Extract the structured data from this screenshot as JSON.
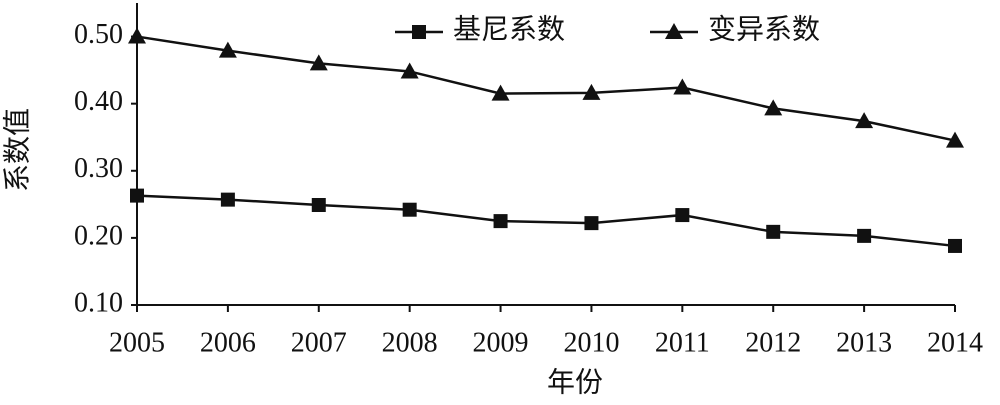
{
  "chart_data": {
    "type": "line",
    "x_label": "年份",
    "y_label": "系数值",
    "categories": [
      "2005",
      "2006",
      "2007",
      "2008",
      "2009",
      "2010",
      "2011",
      "2012",
      "2013",
      "2014"
    ],
    "series": [
      {
        "name": "基尼系数",
        "color": "#111111",
        "marker": "square",
        "values": [
          0.263,
          0.257,
          0.249,
          0.242,
          0.225,
          0.222,
          0.234,
          0.209,
          0.203,
          0.188
        ]
      },
      {
        "name": "变异系数",
        "color": "#111111",
        "marker": "triangle",
        "values": [
          0.5,
          0.479,
          0.46,
          0.448,
          0.415,
          0.416,
          0.424,
          0.393,
          0.374,
          0.345
        ]
      }
    ],
    "ylim": [
      0.1,
      0.55
    ],
    "yticks": [
      {
        "value": 0.1,
        "label": "0.10"
      },
      {
        "value": 0.2,
        "label": "0.20"
      },
      {
        "value": 0.3,
        "label": "0.30"
      },
      {
        "value": 0.4,
        "label": "0.40"
      },
      {
        "value": 0.5,
        "label": "0.50"
      }
    ],
    "grid": false,
    "legend": "top"
  }
}
